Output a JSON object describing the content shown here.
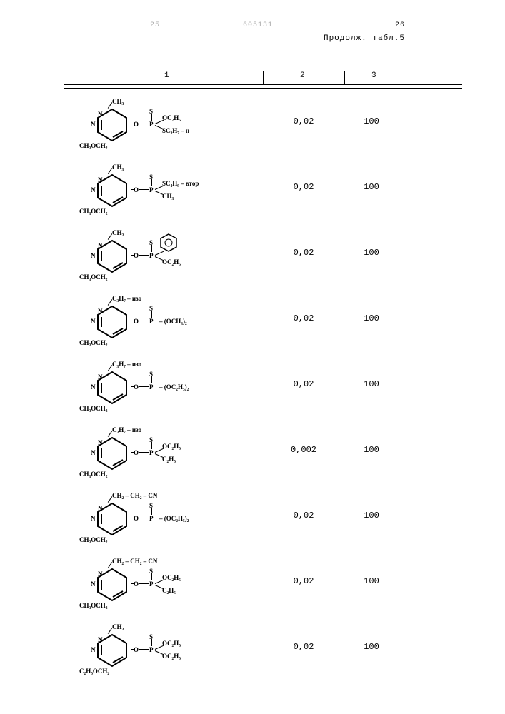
{
  "page_number_left_faint": "25",
  "top_center_faint": "605131",
  "page_number_right": "26",
  "continuation_label": "Продолж. табл.5",
  "header": {
    "col1": "1",
    "col2": "2",
    "col3": "3"
  },
  "columns_x": {
    "sep1": 278,
    "sep2": 392
  },
  "colnum_x": {
    "c1": 140,
    "c2": 330,
    "c3": 430
  },
  "rows": [
    {
      "r1": "CH₃",
      "r2": "CH₃OCH₂",
      "p_top": "S",
      "branch_mode": "two",
      "x1": "OC₂H₅",
      "x2": "SC₃H₇ – н",
      "c2": "0,02",
      "c3": "100"
    },
    {
      "r1": "CH₃",
      "r2": "CH₃OCH₂",
      "p_top": "S",
      "branch_mode": "two",
      "x1": "SC₄H₉ – втор",
      "x2": "CH₃",
      "c2": "0,02",
      "c3": "100"
    },
    {
      "r1": "CH₃",
      "r2": "CH₃OCH₂",
      "p_top": "S",
      "branch_mode": "phenyl",
      "x1": "",
      "x2": "OC₂H₅",
      "c2": "0,02",
      "c3": "100"
    },
    {
      "r1": "C₃H₇ – изо",
      "r2": "CH₃OCH₂",
      "p_top": "S",
      "branch_mode": "one",
      "x": "– (OCH₃)₂",
      "c2": "0,02",
      "c3": "100"
    },
    {
      "r1": "C₃H₇ – изо",
      "r2": "CH₃OCH₂",
      "p_top": "S",
      "branch_mode": "one",
      "x": "– (OC₂H₅)₂",
      "c2": "0,02",
      "c3": "100"
    },
    {
      "r1": "C₃H₇ – изо",
      "r2": "CH₃OCH₂",
      "p_top": "S",
      "branch_mode": "two",
      "x1": "OC₂H₅",
      "x2": "C₂H₅",
      "c2": "0,002",
      "c3": "100"
    },
    {
      "r1": "CH₂ – CH₂ – CN",
      "r2": "CH₃OCH₂",
      "p_top": "S",
      "branch_mode": "one",
      "x": "– (OC₂H₅)₂",
      "c2": "0,02",
      "c3": "100"
    },
    {
      "r1": "CH₂ – CH₂ – CN",
      "r2": "CH₃OCH₂",
      "p_top": "S",
      "branch_mode": "two",
      "x1": "OC₂H₅",
      "x2": "C₂H₅",
      "c2": "0,02",
      "c3": "100"
    },
    {
      "r1": "CH₃",
      "r2": "C₂H₅OCH₂",
      "p_top": "S",
      "branch_mode": "two",
      "x1": "OC₂H₅",
      "x2": "OC₂H₅",
      "c2": "0,02",
      "c3": "100"
    }
  ]
}
